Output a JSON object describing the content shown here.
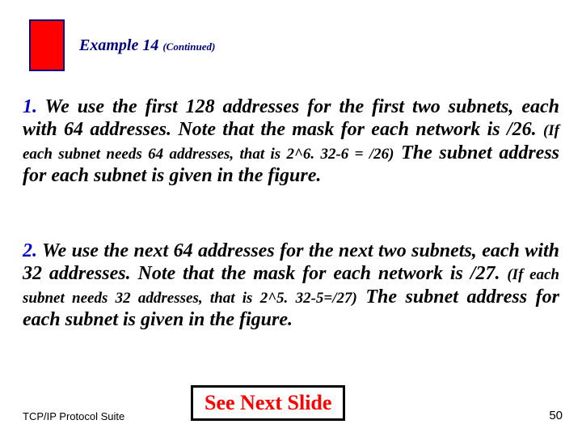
{
  "header": {
    "title_main": "Example 14",
    "title_cont": "(Continued)",
    "box_color": "#ff0000",
    "box_border": "#000080"
  },
  "para1": {
    "num": "1.",
    "text_a": " We use the first 128 addresses for the first two subnets, each with 64 addresses. Note that the mask for each network is /26. ",
    "small": "(If each subnet needs 64 addresses, that is 2^6.  32-6 = /26)",
    "text_b": " The subnet address for each subnet is given in the figure."
  },
  "para2": {
    "num": "2.",
    "text_a": " We use the next 64 addresses for the next two subnets, each with 32 addresses. Note that the mask for each network is /27. ",
    "small": "(If each subnet needs 32 addresses, that is 2^5.   32-5=/27)",
    "text_b": " The subnet address for each subnet is given in the figure."
  },
  "see_next": "See Next Slide",
  "footer_left": "TCP/IP Protocol Suite",
  "page_number": "50"
}
